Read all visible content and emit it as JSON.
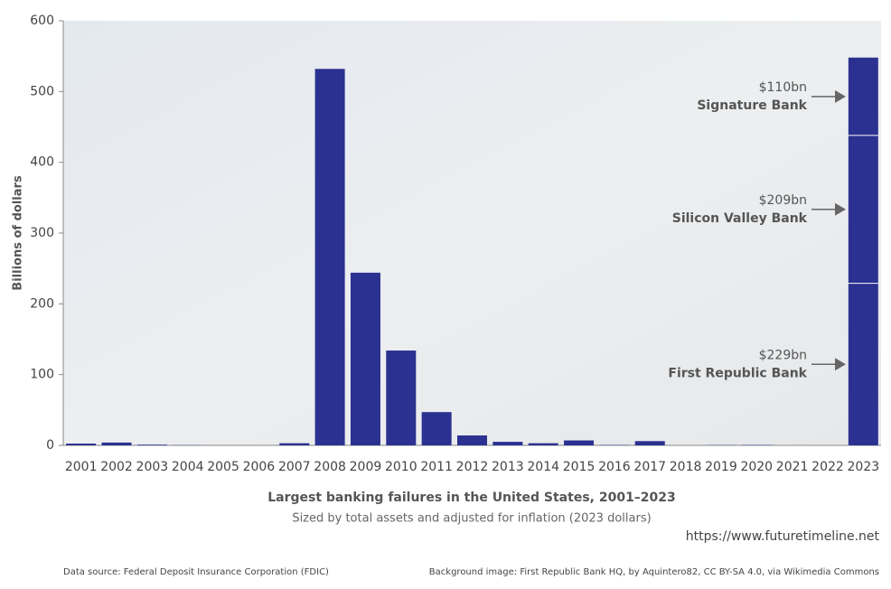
{
  "chart_data": {
    "type": "bar",
    "title": "Largest banking failures in the United States, 2001–2023",
    "subtitle": "Sized by total assets and adjusted for inflation (2023 dollars)",
    "ylabel": "Billions of dollars",
    "categories": [
      "2001",
      "2002",
      "2003",
      "2004",
      "2005",
      "2006",
      "2007",
      "2008",
      "2009",
      "2010",
      "2011",
      "2012",
      "2013",
      "2014",
      "2015",
      "2016",
      "2017",
      "2018",
      "2019",
      "2020",
      "2021",
      "2022",
      "2023"
    ],
    "values": [
      2.5,
      4,
      1,
      0.2,
      0,
      0,
      3,
      532,
      244,
      134,
      47,
      14,
      5,
      3,
      7,
      0.5,
      6,
      0,
      0.3,
      0.5,
      0,
      0,
      null
    ],
    "color": "#2b3190",
    "stack": [
      {
        "name": "First Republic Bank",
        "value": 229,
        "value_label": "$229bn"
      },
      {
        "name": "Silicon Valley Bank",
        "value": 209,
        "value_label": "$209bn"
      },
      {
        "name": "Signature Bank",
        "value": 110,
        "value_label": "$110bn"
      }
    ],
    "ylim": [
      0,
      600
    ],
    "yticks": [
      0,
      100,
      200,
      300,
      400,
      500,
      600
    ],
    "website": "https://www.futuretimeline.net",
    "source": "Data source: Federal Deposit Insurance Corporation (FDIC)",
    "credit": "Background image: First Republic Bank HQ, by Aquintero82, CC BY-SA 4.0, via Wikimedia Commons"
  }
}
